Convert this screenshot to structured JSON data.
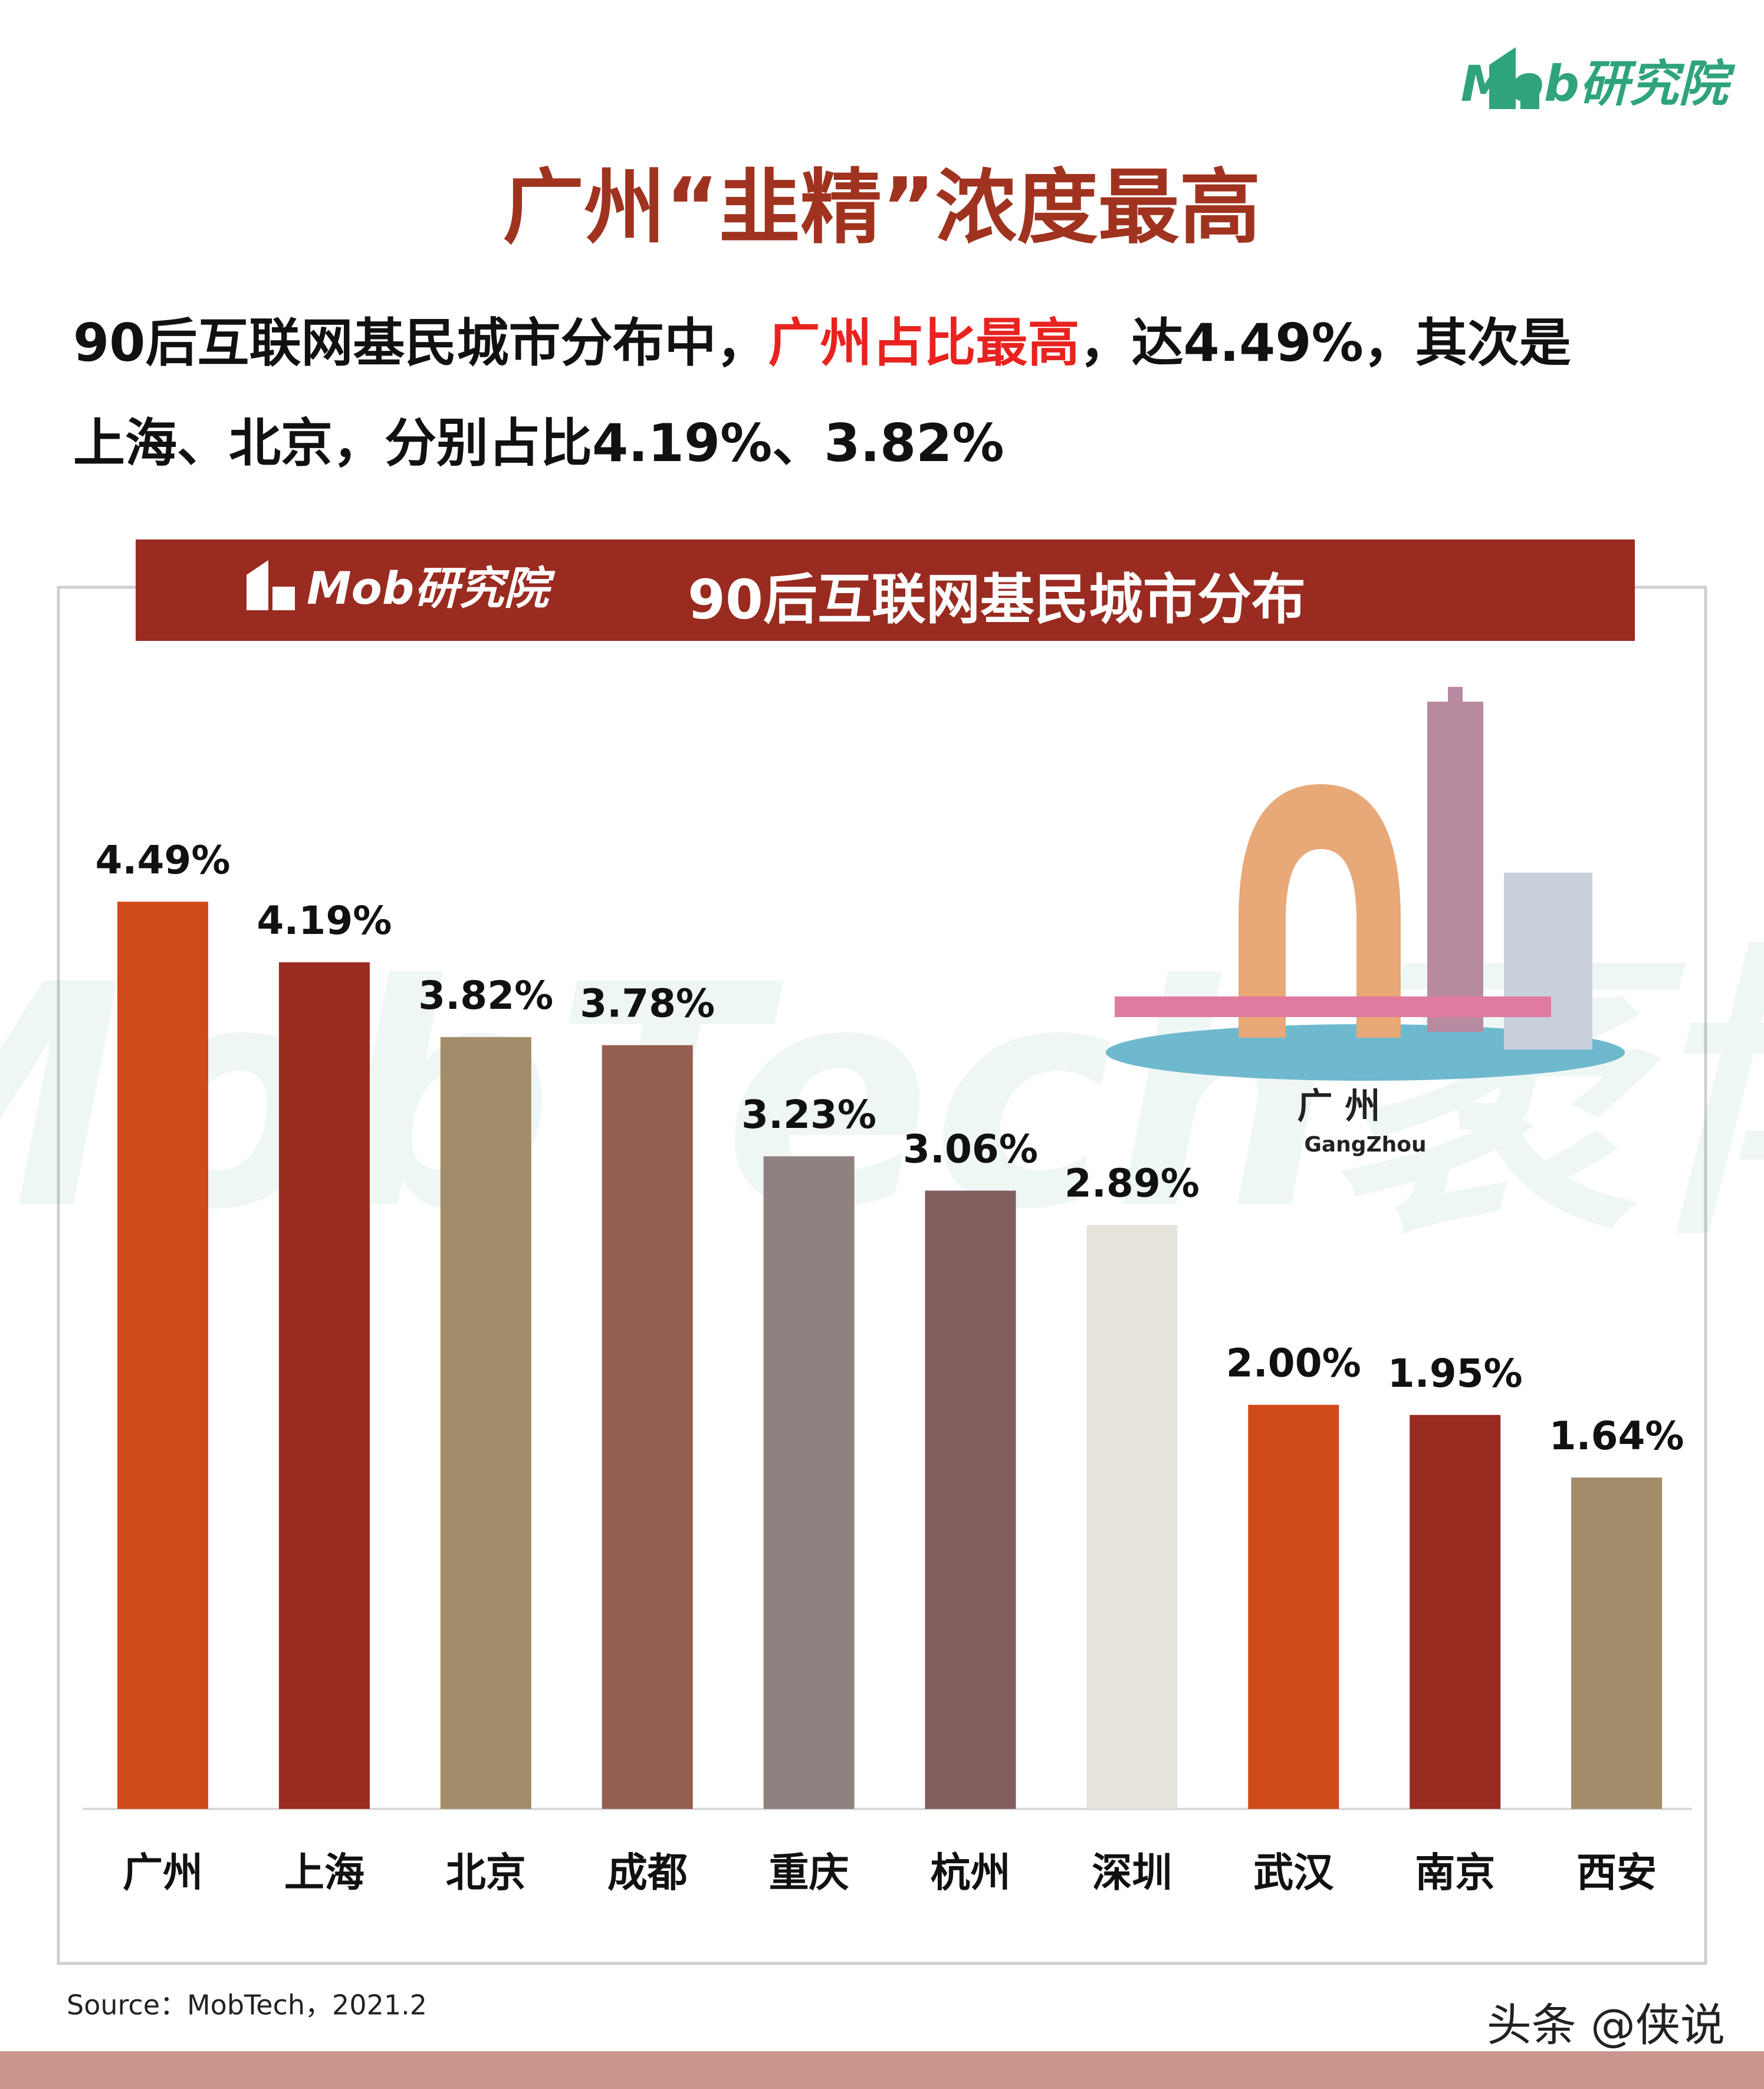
{
  "logo": "Mob研究院",
  "headline": "广州“韭精”浓度最高",
  "subtitle": [
    "90后互联网基民城市分布中，",
    "广州占比最高",
    "，达4.49%，其次是",
    "上海、北京，分别占比4.19%、3.82%"
  ],
  "illustration": {
    "city": "广  州",
    "pinyin": "GangZhou"
  },
  "watermark": "MobTech袤博",
  "source": "Source：MobTech，2021.2",
  "footer": "头条 @侠说",
  "chart_data": {
    "type": "bar",
    "logo": "Mob研究院",
    "title": "90后互联网基民城市分布",
    "categories": [
      "广州",
      "上海",
      "北京",
      "成都",
      "重庆",
      "杭州",
      "深圳",
      "武汉",
      "南京",
      "西安"
    ],
    "values": [
      4.49,
      4.19,
      3.82,
      3.78,
      3.23,
      3.06,
      2.89,
      2.0,
      1.95,
      1.64
    ],
    "value_labels": [
      "4.49%",
      "4.19%",
      "3.82%",
      "3.78%",
      "3.23%",
      "3.06%",
      "2.89%",
      "2.00%",
      "1.95%",
      "1.64%"
    ],
    "colors": [
      "#CF4A19",
      "#992B20",
      "#A38C6A",
      "#945F50",
      "#8E8281",
      "#835D5D",
      "#E7E3DD",
      "#CF4A19",
      "#992B20",
      "#A38C6A"
    ]
  }
}
